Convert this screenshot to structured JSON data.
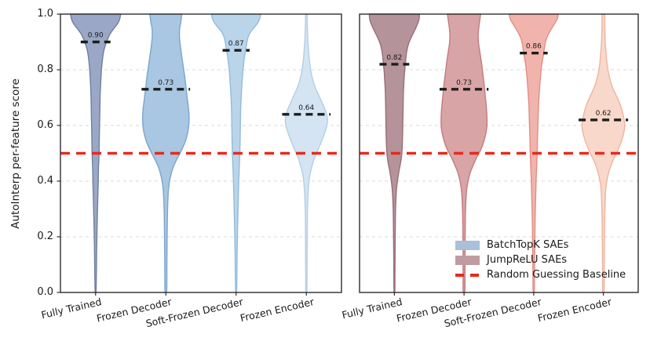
{
  "figure": {
    "ylabel": "AutoInterp per-feature score",
    "ytick_labels": [
      "1.0",
      "0.8",
      "0.6",
      "0.4",
      "0.2",
      "0.0"
    ],
    "spine_color": "#2e2e2e",
    "hgrid_color": "#d9d9d9",
    "vgrid_color": "#cbcbcb",
    "median_line_color": "#1c1c1c",
    "median_label_color": "#1a1a1a"
  },
  "legend": {
    "items": [
      {
        "label": "BatchTopK SAEs",
        "swatch": "patch",
        "color": "#a9c0d9"
      },
      {
        "label": "JumpReLU SAEs",
        "swatch": "patch",
        "color": "#bf9ca1"
      },
      {
        "label": "Random Guessing Baseline",
        "swatch": "dashed-line",
        "color": "#e8291d"
      }
    ]
  },
  "chart_data": [
    {
      "type": "violin",
      "panel": "left",
      "series_name": "BatchTopK SAEs",
      "ylabel": "AutoInterp per-feature score",
      "ylim": [
        0.0,
        1.0
      ],
      "yticks": [
        0.0,
        0.2,
        0.4,
        0.6,
        0.8,
        1.0
      ],
      "grid": true,
      "baseline": {
        "label": "Random Guessing Baseline",
        "value": 0.5,
        "color": "#e8291d"
      },
      "categories": [
        "Fully Trained",
        "Frozen Decoder",
        "Soft-Frozen Decoder",
        "Frozen Encoder"
      ],
      "medians": [
        0.9,
        0.73,
        0.87,
        0.64
      ],
      "violins": [
        {
          "category": "Fully Trained",
          "median": 0.9,
          "median_label": "0.90",
          "fill": "#9ba7c6",
          "stroke": "#70809f",
          "profile": [
            [
              1.0,
              0.94
            ],
            [
              0.985,
              0.91
            ],
            [
              0.97,
              0.85
            ],
            [
              0.955,
              0.74
            ],
            [
              0.94,
              0.62
            ],
            [
              0.925,
              0.52
            ],
            [
              0.91,
              0.45
            ],
            [
              0.9,
              0.41
            ],
            [
              0.88,
              0.34
            ],
            [
              0.86,
              0.29
            ],
            [
              0.83,
              0.25
            ],
            [
              0.8,
              0.22
            ],
            [
              0.75,
              0.19
            ],
            [
              0.7,
              0.17
            ],
            [
              0.65,
              0.16
            ],
            [
              0.6,
              0.15
            ],
            [
              0.55,
              0.14
            ],
            [
              0.5,
              0.13
            ],
            [
              0.45,
              0.11
            ],
            [
              0.4,
              0.1
            ],
            [
              0.33,
              0.08
            ],
            [
              0.25,
              0.06
            ],
            [
              0.15,
              0.04
            ],
            [
              0.07,
              0.03
            ],
            [
              0.0,
              0.015
            ]
          ]
        },
        {
          "category": "Frozen Decoder",
          "median": 0.73,
          "median_label": "0.73",
          "fill": "#a9c6e2",
          "stroke": "#7ba6ce",
          "profile": [
            [
              1.0,
              0.6
            ],
            [
              0.97,
              0.56
            ],
            [
              0.95,
              0.52
            ],
            [
              0.92,
              0.51
            ],
            [
              0.89,
              0.54
            ],
            [
              0.86,
              0.58
            ],
            [
              0.82,
              0.64
            ],
            [
              0.78,
              0.7
            ],
            [
              0.74,
              0.75
            ],
            [
              0.7,
              0.8
            ],
            [
              0.66,
              0.85
            ],
            [
              0.63,
              0.87
            ],
            [
              0.6,
              0.86
            ],
            [
              0.57,
              0.81
            ],
            [
              0.54,
              0.72
            ],
            [
              0.52,
              0.63
            ],
            [
              0.5,
              0.53
            ],
            [
              0.48,
              0.42
            ],
            [
              0.46,
              0.32
            ],
            [
              0.44,
              0.24
            ],
            [
              0.41,
              0.16
            ],
            [
              0.38,
              0.11
            ],
            [
              0.34,
              0.08
            ],
            [
              0.28,
              0.06
            ],
            [
              0.2,
              0.05
            ],
            [
              0.1,
              0.04
            ],
            [
              0.0,
              0.03
            ]
          ]
        },
        {
          "category": "Soft-Frozen Decoder",
          "median": 0.87,
          "median_label": "0.87",
          "fill": "#bad4ea",
          "stroke": "#93bcdb",
          "profile": [
            [
              1.0,
              0.92
            ],
            [
              0.985,
              0.89
            ],
            [
              0.97,
              0.82
            ],
            [
              0.955,
              0.7
            ],
            [
              0.94,
              0.57
            ],
            [
              0.925,
              0.48
            ],
            [
              0.91,
              0.43
            ],
            [
              0.89,
              0.39
            ],
            [
              0.87,
              0.36
            ],
            [
              0.85,
              0.32
            ],
            [
              0.82,
              0.28
            ],
            [
              0.79,
              0.25
            ],
            [
              0.75,
              0.22
            ],
            [
              0.7,
              0.19
            ],
            [
              0.65,
              0.17
            ],
            [
              0.6,
              0.16
            ],
            [
              0.55,
              0.15
            ],
            [
              0.5,
              0.14
            ],
            [
              0.45,
              0.12
            ],
            [
              0.4,
              0.1
            ],
            [
              0.33,
              0.08
            ],
            [
              0.25,
              0.06
            ],
            [
              0.15,
              0.04
            ],
            [
              0.07,
              0.03
            ],
            [
              0.0,
              0.02
            ]
          ]
        },
        {
          "category": "Frozen Encoder",
          "median": 0.64,
          "median_label": "0.64",
          "fill": "#d4e4f2",
          "stroke": "#b3cfe4",
          "profile": [
            [
              1.0,
              0.03
            ],
            [
              0.95,
              0.04
            ],
            [
              0.9,
              0.06
            ],
            [
              0.86,
              0.09
            ],
            [
              0.82,
              0.13
            ],
            [
              0.78,
              0.2
            ],
            [
              0.74,
              0.32
            ],
            [
              0.71,
              0.46
            ],
            [
              0.68,
              0.6
            ],
            [
              0.66,
              0.69
            ],
            [
              0.64,
              0.76
            ],
            [
              0.62,
              0.79
            ],
            [
              0.6,
              0.77
            ],
            [
              0.58,
              0.71
            ],
            [
              0.55,
              0.6
            ],
            [
              0.52,
              0.47
            ],
            [
              0.5,
              0.38
            ],
            [
              0.48,
              0.29
            ],
            [
              0.45,
              0.2
            ],
            [
              0.42,
              0.13
            ],
            [
              0.39,
              0.09
            ],
            [
              0.35,
              0.06
            ],
            [
              0.28,
              0.04
            ],
            [
              0.18,
              0.03
            ],
            [
              0.08,
              0.025
            ],
            [
              0.0,
              0.02
            ]
          ]
        }
      ]
    },
    {
      "type": "violin",
      "panel": "right",
      "series_name": "JumpReLU SAEs",
      "ylabel": "AutoInterp per-feature score",
      "ylim": [
        0.0,
        1.0
      ],
      "yticks": [
        0.0,
        0.2,
        0.4,
        0.6,
        0.8,
        1.0
      ],
      "grid": true,
      "baseline": {
        "label": "Random Guessing Baseline",
        "value": 0.5,
        "color": "#e8291d"
      },
      "categories": [
        "Fully Trained",
        "Frozen Decoder",
        "Soft-Frozen Decoder",
        "Frozen Encoder"
      ],
      "medians": [
        0.82,
        0.73,
        0.86,
        0.62
      ],
      "violins": [
        {
          "category": "Fully Trained",
          "median": 0.82,
          "median_label": "0.82",
          "fill": "#b5939b",
          "stroke": "#9a6e78",
          "profile": [
            [
              1.0,
              0.94
            ],
            [
              0.985,
              0.93
            ],
            [
              0.97,
              0.89
            ],
            [
              0.95,
              0.8
            ],
            [
              0.93,
              0.7
            ],
            [
              0.91,
              0.6
            ],
            [
              0.89,
              0.52
            ],
            [
              0.87,
              0.47
            ],
            [
              0.85,
              0.44
            ],
            [
              0.82,
              0.41
            ],
            [
              0.79,
              0.38
            ],
            [
              0.76,
              0.36
            ],
            [
              0.72,
              0.34
            ],
            [
              0.68,
              0.33
            ],
            [
              0.63,
              0.32
            ],
            [
              0.58,
              0.31
            ],
            [
              0.54,
              0.3
            ],
            [
              0.5,
              0.28
            ],
            [
              0.47,
              0.24
            ],
            [
              0.44,
              0.18
            ],
            [
              0.41,
              0.13
            ],
            [
              0.38,
              0.09
            ],
            [
              0.34,
              0.06
            ],
            [
              0.28,
              0.04
            ],
            [
              0.18,
              0.03
            ],
            [
              0.08,
              0.02
            ],
            [
              0.0,
              0.015
            ]
          ]
        },
        {
          "category": "Frozen Decoder",
          "median": 0.73,
          "median_label": "0.73",
          "fill": "#d9a4a5",
          "stroke": "#c47b7b",
          "profile": [
            [
              1.0,
              0.62
            ],
            [
              0.97,
              0.58
            ],
            [
              0.95,
              0.55
            ],
            [
              0.92,
              0.53
            ],
            [
              0.89,
              0.55
            ],
            [
              0.86,
              0.6
            ],
            [
              0.82,
              0.66
            ],
            [
              0.78,
              0.71
            ],
            [
              0.74,
              0.76
            ],
            [
              0.7,
              0.8
            ],
            [
              0.66,
              0.84
            ],
            [
              0.62,
              0.86
            ],
            [
              0.59,
              0.85
            ],
            [
              0.56,
              0.79
            ],
            [
              0.53,
              0.7
            ],
            [
              0.51,
              0.61
            ],
            [
              0.49,
              0.5
            ],
            [
              0.47,
              0.4
            ],
            [
              0.45,
              0.31
            ],
            [
              0.43,
              0.23
            ],
            [
              0.4,
              0.15
            ],
            [
              0.37,
              0.1
            ],
            [
              0.33,
              0.07
            ],
            [
              0.27,
              0.05
            ],
            [
              0.18,
              0.04
            ],
            [
              0.08,
              0.035
            ],
            [
              0.0,
              0.03
            ]
          ]
        },
        {
          "category": "Soft-Frozen Decoder",
          "median": 0.86,
          "median_label": "0.86",
          "fill": "#f1b4ac",
          "stroke": "#e18e84",
          "profile": [
            [
              1.0,
              0.92
            ],
            [
              0.985,
              0.89
            ],
            [
              0.97,
              0.81
            ],
            [
              0.95,
              0.68
            ],
            [
              0.93,
              0.56
            ],
            [
              0.91,
              0.47
            ],
            [
              0.89,
              0.42
            ],
            [
              0.87,
              0.39
            ],
            [
              0.86,
              0.375
            ],
            [
              0.84,
              0.34
            ],
            [
              0.81,
              0.29
            ],
            [
              0.77,
              0.25
            ],
            [
              0.72,
              0.21
            ],
            [
              0.67,
              0.18
            ],
            [
              0.61,
              0.16
            ],
            [
              0.55,
              0.14
            ],
            [
              0.5,
              0.13
            ],
            [
              0.45,
              0.11
            ],
            [
              0.4,
              0.09
            ],
            [
              0.33,
              0.07
            ],
            [
              0.25,
              0.05
            ],
            [
              0.15,
              0.04
            ],
            [
              0.07,
              0.03
            ],
            [
              0.0,
              0.02
            ]
          ]
        },
        {
          "category": "Frozen Encoder",
          "median": 0.62,
          "median_label": "0.62",
          "fill": "#f8d8ca",
          "stroke": "#f0b49e",
          "profile": [
            [
              1.0,
              0.05
            ],
            [
              0.95,
              0.055
            ],
            [
              0.9,
              0.07
            ],
            [
              0.86,
              0.1
            ],
            [
              0.82,
              0.14
            ],
            [
              0.78,
              0.21
            ],
            [
              0.74,
              0.33
            ],
            [
              0.71,
              0.47
            ],
            [
              0.68,
              0.61
            ],
            [
              0.65,
              0.71
            ],
            [
              0.62,
              0.78
            ],
            [
              0.6,
              0.8
            ],
            [
              0.58,
              0.78
            ],
            [
              0.55,
              0.7
            ],
            [
              0.52,
              0.58
            ],
            [
              0.49,
              0.44
            ],
            [
              0.47,
              0.34
            ],
            [
              0.45,
              0.26
            ],
            [
              0.42,
              0.17
            ],
            [
              0.39,
              0.11
            ],
            [
              0.36,
              0.08
            ],
            [
              0.31,
              0.06
            ],
            [
              0.24,
              0.045
            ],
            [
              0.15,
              0.035
            ],
            [
              0.07,
              0.03
            ],
            [
              0.0,
              0.025
            ]
          ]
        }
      ]
    }
  ]
}
